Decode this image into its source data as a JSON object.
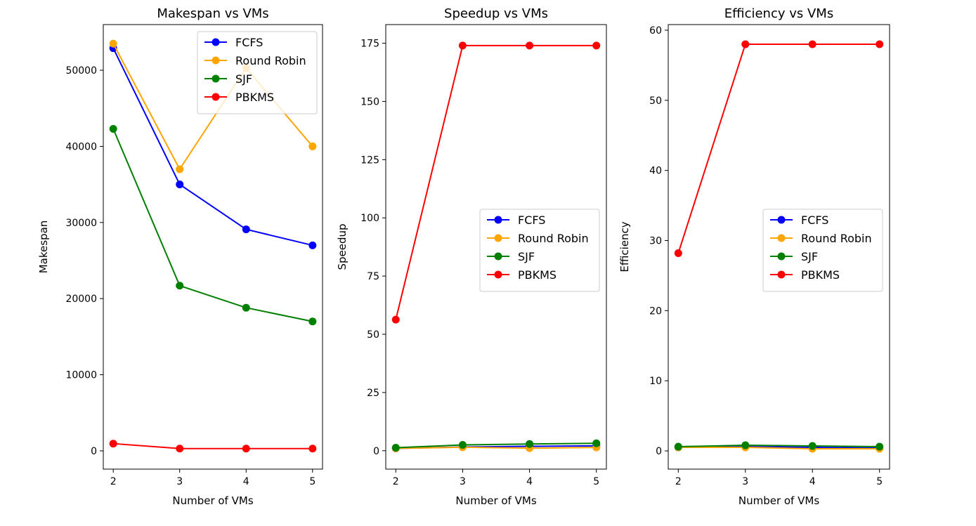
{
  "chart_data": [
    {
      "type": "line",
      "title": "Makespan vs VMs",
      "xlabel": "Number of VMs",
      "ylabel": "Makespan",
      "x": [
        2,
        3,
        4,
        5
      ],
      "xticks": [
        2,
        3,
        4,
        5
      ],
      "xlim": [
        1.85,
        5.15
      ],
      "ylim": [
        -2400,
        56000
      ],
      "yticks": [
        0,
        10000,
        20000,
        30000,
        40000,
        50000
      ],
      "legend_position": "upper right",
      "series": [
        {
          "name": "FCFS",
          "color": "#0000ff",
          "values": [
            52900,
            35000,
            29100,
            27000
          ]
        },
        {
          "name": "Round Robin",
          "color": "#ffa500",
          "values": [
            53500,
            37000,
            50300,
            40000
          ]
        },
        {
          "name": "SJF",
          "color": "#008000",
          "values": [
            42300,
            21700,
            18800,
            17000
          ]
        },
        {
          "name": "PBKMS",
          "color": "#ff0000",
          "values": [
            950,
            300,
            300,
            300
          ]
        }
      ]
    },
    {
      "type": "line",
      "title": "Speedup vs VMs",
      "xlabel": "Number of VMs",
      "ylabel": "Speedup",
      "x": [
        2,
        3,
        4,
        5
      ],
      "xticks": [
        2,
        3,
        4,
        5
      ],
      "xlim": [
        1.85,
        5.15
      ],
      "ylim": [
        -7.9,
        183
      ],
      "yticks": [
        0,
        25,
        50,
        75,
        100,
        125,
        150,
        175
      ],
      "legend_position": "center right",
      "series": [
        {
          "name": "FCFS",
          "color": "#0000ff",
          "values": [
            1.0,
            1.6,
            1.9,
            2.1
          ]
        },
        {
          "name": "Round Robin",
          "color": "#ffa500",
          "values": [
            1.0,
            1.5,
            1.1,
            1.4
          ]
        },
        {
          "name": "SJF",
          "color": "#008000",
          "values": [
            1.3,
            2.5,
            2.9,
            3.2
          ]
        },
        {
          "name": "PBKMS",
          "color": "#ff0000",
          "values": [
            56.3,
            174,
            174,
            174
          ]
        }
      ]
    },
    {
      "type": "line",
      "title": "Efficiency vs VMs",
      "xlabel": "Number of VMs",
      "ylabel": "Efficiency",
      "x": [
        2,
        3,
        4,
        5
      ],
      "xticks": [
        2,
        3,
        4,
        5
      ],
      "xlim": [
        1.85,
        5.15
      ],
      "ylim": [
        -2.6,
        60.8
      ],
      "yticks": [
        0,
        10,
        20,
        30,
        40,
        50,
        60
      ],
      "legend_position": "center right",
      "series": [
        {
          "name": "FCFS",
          "color": "#0000ff",
          "values": [
            0.5,
            0.6,
            0.5,
            0.4
          ]
        },
        {
          "name": "Round Robin",
          "color": "#ffa500",
          "values": [
            0.5,
            0.5,
            0.3,
            0.3
          ]
        },
        {
          "name": "SJF",
          "color": "#008000",
          "values": [
            0.6,
            0.8,
            0.7,
            0.6
          ]
        },
        {
          "name": "PBKMS",
          "color": "#ff0000",
          "values": [
            28.2,
            58,
            58,
            58
          ]
        }
      ]
    }
  ]
}
